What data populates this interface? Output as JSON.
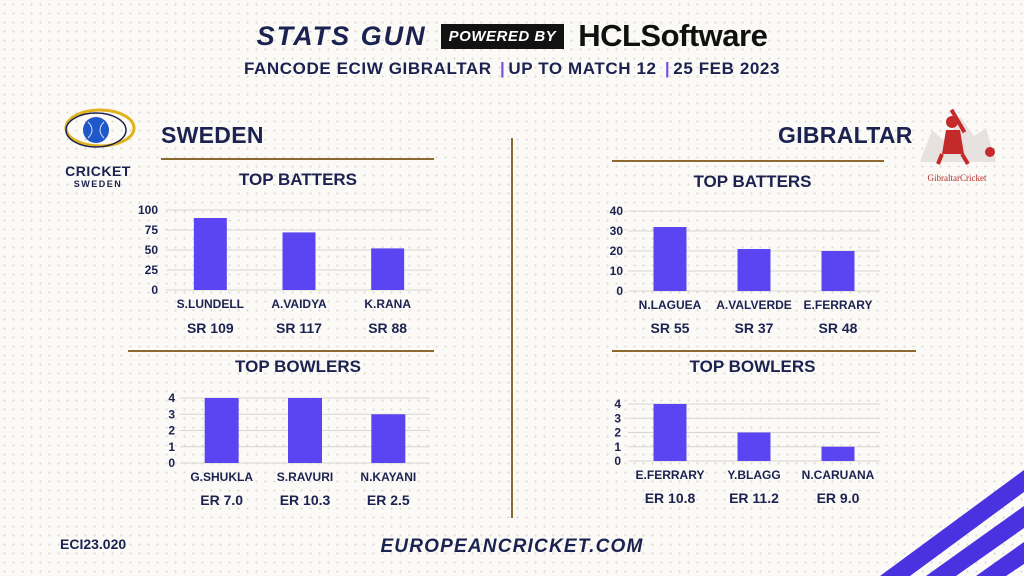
{
  "header": {
    "brand_left": "STATS GUN",
    "powered_by": "POWERED BY",
    "brand_right": "HCLSoftware",
    "subtitle_parts": [
      "FANCODE ECIW GIBRALTAR",
      "UP TO MATCH 12",
      "25 FEB 2023"
    ],
    "separator": "|"
  },
  "logos": {
    "sweden_word": "CRICKET",
    "sweden_sub": "SWEDEN",
    "gibraltar_word": "GibraltarCricket"
  },
  "footer": {
    "code": "ECI23.020",
    "url": "EUROPEANCRICKET.COM"
  },
  "colors": {
    "bar": "#5b45f2",
    "navy": "#1c2250",
    "gold": "#8a6a2e",
    "accent": "#7a4fe0"
  },
  "chart_data": [
    {
      "type": "bar",
      "team": "SWEDEN",
      "title": "TOP BATTERS",
      "categories": [
        "S.LUNDELL",
        "A.VAIDYA",
        "K.RANA"
      ],
      "values": [
        90,
        72,
        52
      ],
      "stats": [
        "SR 109",
        "SR 117",
        "SR 88"
      ],
      "yticks": [
        0,
        25,
        50,
        75,
        100
      ],
      "ylim": [
        0,
        100
      ]
    },
    {
      "type": "bar",
      "team": "SWEDEN",
      "title": "TOP BOWLERS",
      "categories": [
        "G.SHUKLA",
        "S.RAVURI",
        "N.KAYANI"
      ],
      "values": [
        4,
        4,
        3
      ],
      "stats": [
        "ER 7.0",
        "ER 10.3",
        "ER 2.5"
      ],
      "yticks": [
        0,
        1,
        2,
        3,
        4
      ],
      "ylim": [
        0,
        4
      ]
    },
    {
      "type": "bar",
      "team": "GIBRALTAR",
      "title": "TOP BATTERS",
      "categories": [
        "N.LAGUEA",
        "A.VALVERDE",
        "E.FERRARY"
      ],
      "values": [
        32,
        21,
        20
      ],
      "stats": [
        "SR 55",
        "SR 37",
        "SR 48"
      ],
      "yticks": [
        0,
        10,
        20,
        30,
        40
      ],
      "ylim": [
        0,
        40
      ]
    },
    {
      "type": "bar",
      "team": "GIBRALTAR",
      "title": "TOP BOWLERS",
      "categories": [
        "E.FERRARY",
        "Y.BLAGG",
        "N.CARUANA"
      ],
      "values": [
        4,
        2,
        1
      ],
      "stats": [
        "ER 10.8",
        "ER 11.2",
        "ER 9.0"
      ],
      "yticks": [
        0,
        1,
        2,
        3,
        4
      ],
      "ylim": [
        0,
        4
      ]
    }
  ]
}
